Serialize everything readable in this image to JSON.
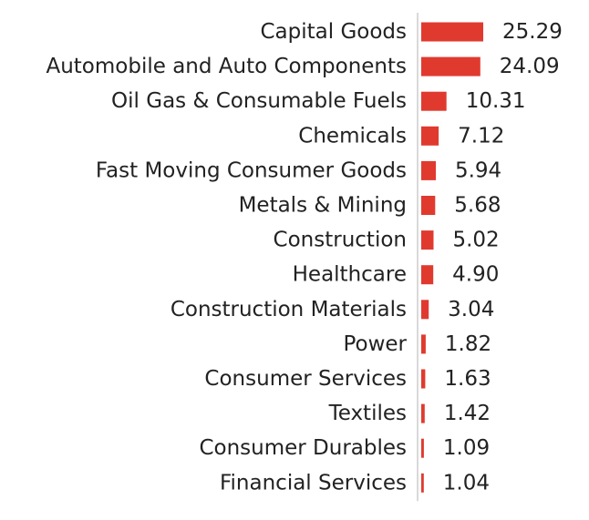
{
  "chart_data": {
    "type": "bar",
    "orientation": "horizontal",
    "title": "",
    "xlabel": "",
    "ylabel": "",
    "grid": false,
    "legend": "none",
    "bar_color": "#e03a2f",
    "axis_color": "#d9d9d9",
    "categories": [
      "Capital Goods",
      "Automobile and Auto Components",
      "Oil Gas & Consumable Fuels",
      "Chemicals",
      "Fast Moving Consumer Goods",
      "Metals & Mining",
      "Construction",
      "Healthcare",
      "Construction Materials",
      "Power",
      "Consumer Services",
      "Textiles",
      "Consumer Durables",
      "Financial Services"
    ],
    "values": [
      25.29,
      24.09,
      10.31,
      7.12,
      5.94,
      5.68,
      5.02,
      4.9,
      3.04,
      1.82,
      1.63,
      1.42,
      1.09,
      1.04
    ],
    "value_labels": [
      "25.29",
      "24.09",
      "10.31",
      "7.12",
      "5.94",
      "5.68",
      "5.02",
      "4.90",
      "3.04",
      "1.82",
      "1.63",
      "1.42",
      "1.09",
      "1.04"
    ],
    "xlim": [
      0,
      25.29
    ]
  }
}
